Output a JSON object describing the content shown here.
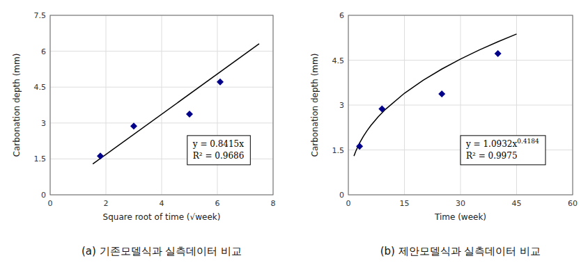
{
  "chart_data": [
    {
      "type": "scatter",
      "subtitle": "(a) 기존모델식과 실측데이터 비교",
      "xlabel": "Square root of time (√week)",
      "ylabel": "Carbonation depth (mm)",
      "xlim": [
        0,
        8
      ],
      "xticks": [
        0,
        2,
        4,
        6,
        8
      ],
      "ylim": [
        0,
        7.5
      ],
      "yticks": [
        0,
        1.5,
        3,
        4.5,
        6,
        7.5
      ],
      "grid": true,
      "series": [
        {
          "type": "line",
          "color": "#000000",
          "x": [
            1.53,
            7.5
          ],
          "values": [
            1.287495,
            6.31125
          ]
        },
        {
          "type": "scatter",
          "marker": "diamond",
          "color": "#00008B",
          "x": [
            1.8,
            3.0,
            5.0,
            6.1
          ],
          "values": [
            1.62,
            2.87,
            3.37,
            4.72
          ]
        }
      ],
      "annotations": [
        {
          "text": "y = 0.8415x"
        },
        {
          "text": "R² = 0.9686"
        }
      ]
    },
    {
      "type": "scatter",
      "subtitle": "(b) 제안모델식과 실측데이터 비교",
      "xlabel": "Time (week)",
      "ylabel": "Carbonation depth (mm)",
      "xlim": [
        0,
        60
      ],
      "xticks": [
        0,
        15,
        30,
        45,
        60
      ],
      "ylim": [
        0,
        6
      ],
      "yticks": [
        0,
        1.5,
        3,
        4.5,
        6
      ],
      "grid": true,
      "series": [
        {
          "type": "line",
          "color": "#000000",
          "x": [
            1.5,
            2,
            3,
            4,
            5,
            6,
            8,
            10,
            15,
            20,
            25,
            30,
            35,
            40,
            45
          ],
          "values": [
            1.29532,
            1.46102,
            1.73112,
            1.95254,
            2.14362,
            2.31355,
            2.60947,
            2.86484,
            3.3945,
            3.82869,
            4.20337,
            4.53656,
            4.8388,
            5.11684,
            5.37531
          ]
        },
        {
          "type": "scatter",
          "marker": "diamond",
          "color": "#00008B",
          "x": [
            3.0,
            9.0,
            25.0,
            40.0
          ],
          "values": [
            1.62,
            2.87,
            3.37,
            4.72
          ]
        }
      ],
      "annotations": [
        {
          "text": "y = 1.0932x",
          "superscript": "0.4184"
        },
        {
          "text": "R² = 0.9975"
        }
      ]
    }
  ]
}
